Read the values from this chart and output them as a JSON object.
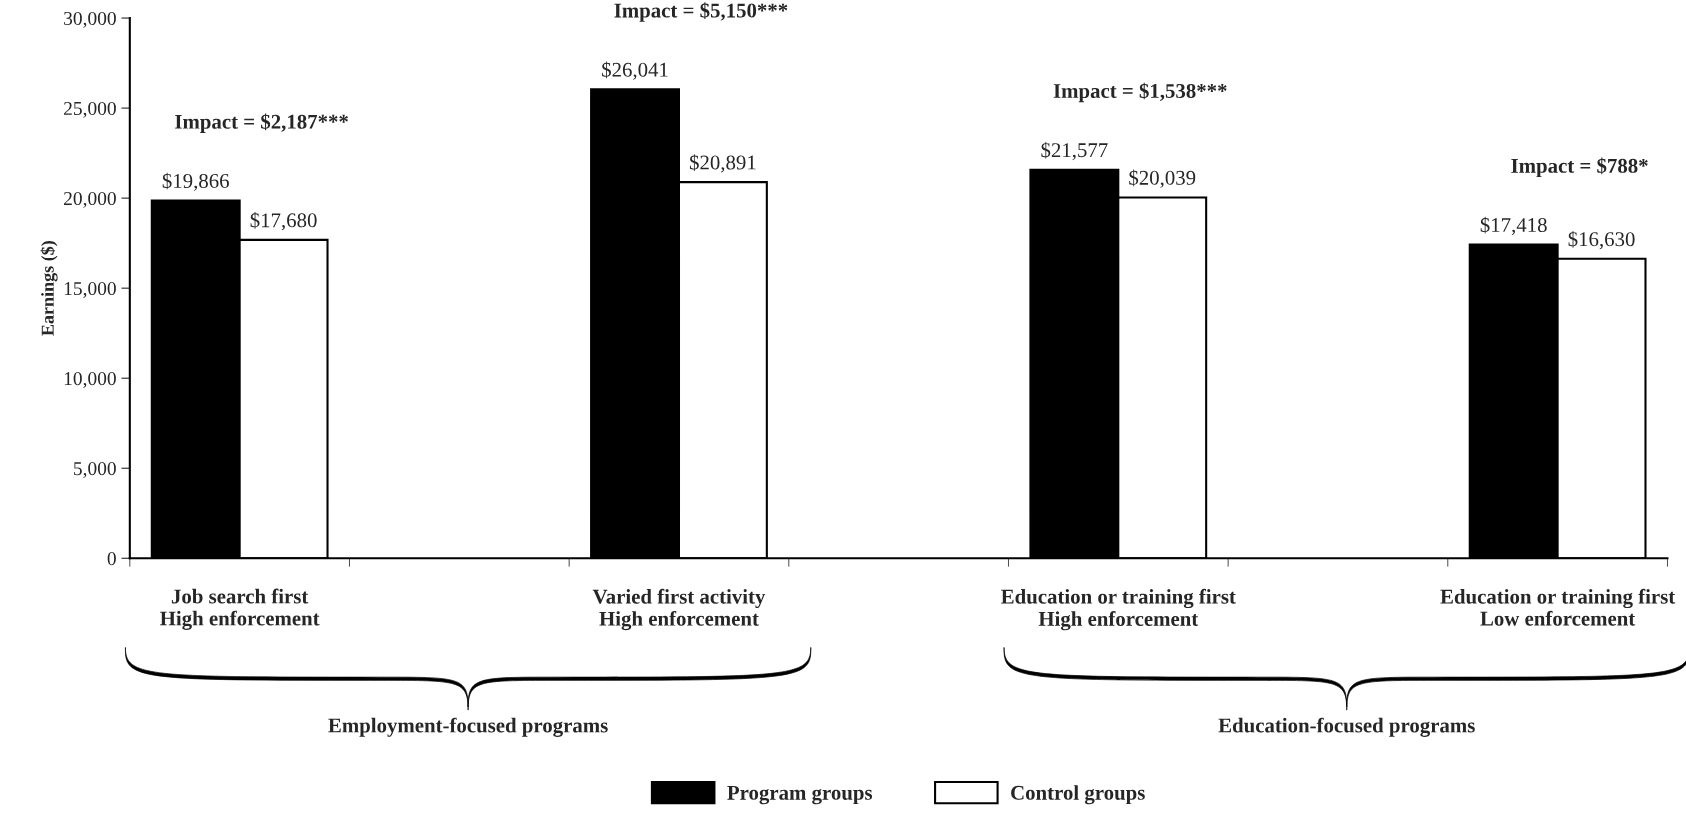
{
  "chart_data": {
    "type": "bar",
    "ylabel": "Earnings ($)",
    "categories": [
      "Job search first\nHigh enforcement",
      "Varied first activity\nHigh enforcement",
      "Education or training first\nHigh enforcement",
      "Education or training first\nLow enforcement"
    ],
    "series": [
      {
        "name": "Program groups",
        "color": "#000000",
        "values": [
          19866,
          26041,
          21577,
          17418
        ],
        "value_labels": [
          "$19,866",
          "$26,041",
          "$21,577",
          "$17,418"
        ]
      },
      {
        "name": "Control groups",
        "color": "#ffffff",
        "values": [
          17680,
          20891,
          20039,
          16630
        ],
        "value_labels": [
          "$17,680",
          "$20,891",
          "$20,039",
          "$16,630"
        ]
      }
    ],
    "ylim": [
      0,
      30000
    ],
    "yticks": [
      0,
      {
        "value": 5000,
        "label": "5,000"
      },
      {
        "value": 10000,
        "label": "10,000"
      },
      {
        "value": 15000,
        "label": "15,000"
      },
      {
        "value": 20000,
        "label": "20,000"
      },
      {
        "value": 25000,
        "label": "25,000"
      },
      {
        "value": 30000,
        "label": "30,000"
      }
    ],
    "annotations": [
      "Impact = $2,187***",
      "Impact = $5,150***",
      "Impact = $1,538***",
      "Impact = $788*",
      "Employment-focused programs",
      "Education-focused programs"
    ],
    "grid": false,
    "legend": "bottom"
  }
}
